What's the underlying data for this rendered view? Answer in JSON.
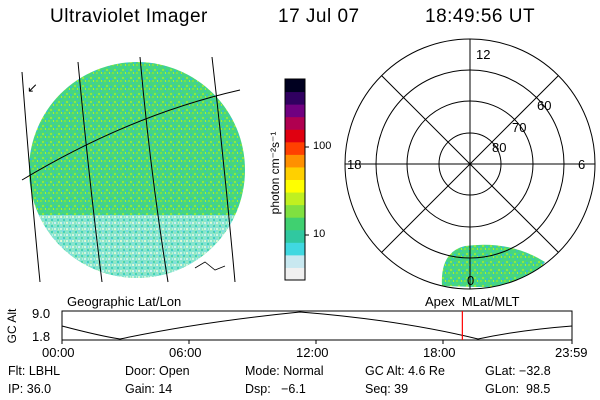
{
  "header": {
    "title": "Ultraviolet Imager",
    "date": "17 Jul 07",
    "time": "18:49:56 UT"
  },
  "colorbar": {
    "unit_label": "photon cm⁻²s⁻¹",
    "tick_100": "100",
    "tick_10": "10",
    "colors": [
      "#f0f0f0",
      "#c8e8f0",
      "#40d8e0",
      "#30c8a0",
      "#40d070",
      "#80e040",
      "#c0f020",
      "#ffff00",
      "#ffd000",
      "#ff9000",
      "#ff4000",
      "#e00010",
      "#b00050",
      "#700080",
      "#300060",
      "#000020"
    ]
  },
  "polar_plot": {
    "labels": {
      "mlt_12": "12",
      "mlt_18": "18",
      "mlt_6": "6",
      "mlt_0": "0"
    },
    "lat_labels": [
      "60",
      "70",
      "80"
    ]
  },
  "panel_labels": {
    "left": "Geographic Lat/Lon",
    "right": "Apex  MLat/MLT"
  },
  "altitude_plot": {
    "ylabel": "GC Alt",
    "ytick_top": "9.0",
    "ytick_bottom": "1.8",
    "xticks": [
      "00:00",
      "06:00",
      "12:00",
      "18:00",
      "23:59"
    ],
    "current_time_fraction": 0.785,
    "marker_color": "#ff0000"
  },
  "info_row1": {
    "filter": "Flt: LBHL",
    "door": "Door: Open",
    "mode": "Mode: Normal",
    "gc_alt": "GC Alt: 4.6 Re",
    "glat": "GLat: −32.8"
  },
  "info_row2": {
    "ip": "IP: 36.0",
    "gain": "Gain: 14",
    "dsp": "Dsp:   −6.1",
    "seq": "Seq: 39",
    "glon": "GLon:  98.5"
  }
}
